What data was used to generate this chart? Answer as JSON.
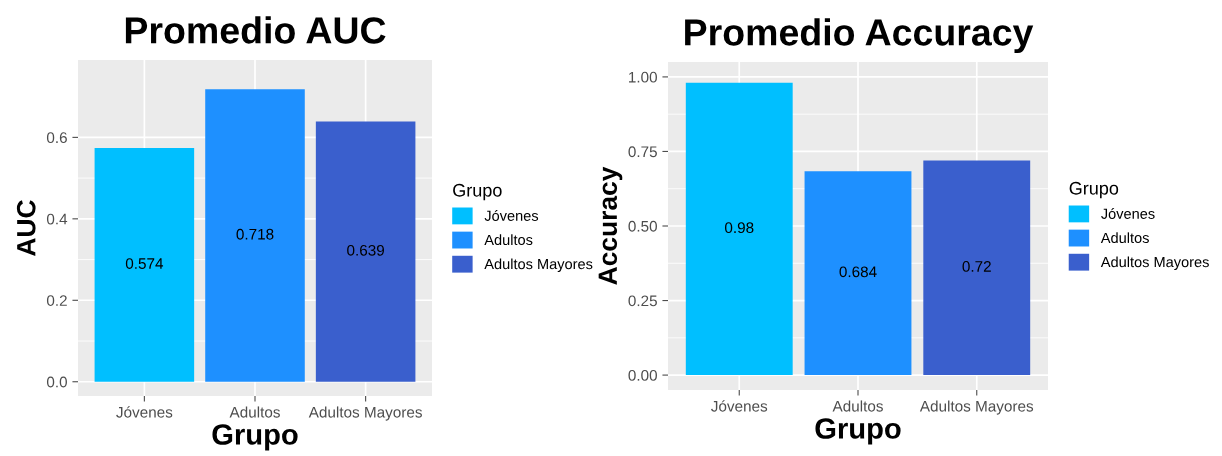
{
  "chart_data": [
    {
      "type": "bar",
      "title": "Promedio AUC",
      "xlabel": "Grupo",
      "ylabel": "AUC",
      "legend_title": "Grupo",
      "legend": "right",
      "grid": true,
      "data_labels": true,
      "categories": [
        "Jóvenes",
        "Adultos",
        "Adultos Mayores"
      ],
      "series": [
        {
          "name": "Jóvenes",
          "color": "#00bfff",
          "values": [
            0.574,
            null,
            null
          ]
        },
        {
          "name": "Adultos",
          "color": "#1e90ff",
          "values": [
            null,
            0.718,
            null
          ]
        },
        {
          "name": "Adultos Mayores",
          "color": "#3a5fcd",
          "values": [
            null,
            null,
            0.639
          ]
        }
      ],
      "ylim": [
        -0.035,
        0.79
      ],
      "yticks": [
        {
          "value": 0,
          "label": "0.0"
        },
        {
          "value": 0.2,
          "label": "0.2"
        },
        {
          "value": 0.4,
          "label": "0.4"
        },
        {
          "value": 0.6,
          "label": "0.6"
        }
      ]
    },
    {
      "type": "bar",
      "title": "Promedio Accuracy",
      "xlabel": "Grupo",
      "ylabel": "Accuracy",
      "legend_title": "Grupo",
      "legend": "right",
      "grid": true,
      "data_labels": true,
      "categories": [
        "Jóvenes",
        "Adultos",
        "Adultos Mayores"
      ],
      "series": [
        {
          "name": "Jóvenes",
          "color": "#00bfff",
          "values": [
            0.98,
            null,
            null
          ]
        },
        {
          "name": "Adultos",
          "color": "#1e90ff",
          "values": [
            null,
            0.684,
            null
          ]
        },
        {
          "name": "Adultos Mayores",
          "color": "#3a5fcd",
          "values": [
            null,
            null,
            0.72
          ]
        }
      ],
      "ylim": [
        -0.05,
        1.05
      ],
      "yticks": [
        {
          "value": 0,
          "label": "0.00"
        },
        {
          "value": 0.25,
          "label": "0.25"
        },
        {
          "value": 0.5,
          "label": "0.50"
        },
        {
          "value": 0.75,
          "label": "0.75"
        },
        {
          "value": 1,
          "label": "1.00"
        }
      ]
    }
  ]
}
